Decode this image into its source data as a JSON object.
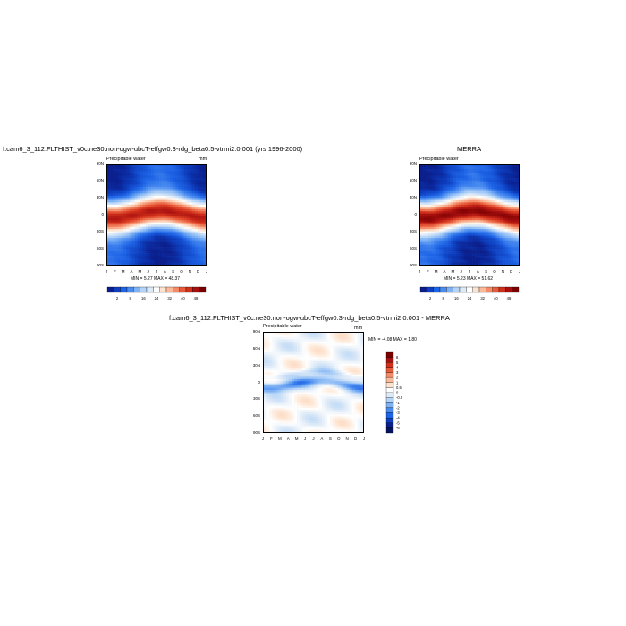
{
  "chart_data": [
    {
      "type": "heatmap",
      "title": "f.cam6_3_112.FLTHIST_v0c.ne30.non-ogw-ubcT-effgw0.3-rdg_beta0.5-vtrmi2.0.001 (yrs 1996-2000)",
      "subtitle": "Precipitable water",
      "units": "mm",
      "x_ticks": [
        "J",
        "F",
        "M",
        "A",
        "M",
        "J",
        "J",
        "A",
        "S",
        "O",
        "N",
        "D",
        "J"
      ],
      "y_ticks": [
        "90N",
        "60N",
        "30N",
        "0",
        "30S",
        "60S",
        "90S"
      ],
      "min_label": "MIN =",
      "min": "5.27",
      "max_label": "MAX =",
      "max": "48.37",
      "colorbar_levels": [
        "2",
        "8",
        "16",
        "24",
        "32",
        "40",
        "48",
        "50"
      ],
      "colorbar_colors": [
        "#0a1e8c",
        "#0d3fc0",
        "#1e64e6",
        "#4a8cf0",
        "#7fb2f5",
        "#b3d3f7",
        "#dce9f7",
        "#ffffff",
        "#fde3cf",
        "#f9b99a",
        "#f48a66",
        "#e85a3a",
        "#d1301a",
        "#a81010",
        "#7a0000"
      ]
    },
    {
      "type": "heatmap",
      "title": "MERRA",
      "subtitle": "Precipitable water",
      "units": "mm",
      "x_ticks": [
        "J",
        "F",
        "M",
        "A",
        "M",
        "J",
        "J",
        "A",
        "S",
        "O",
        "N",
        "D",
        "J"
      ],
      "y_ticks": [
        "90N",
        "60N",
        "30N",
        "0",
        "30S",
        "60S",
        "90S"
      ],
      "min_label": "MIN =",
      "min": "5.23",
      "max_label": "MAX =",
      "max": "51.62",
      "colorbar_levels": [
        "2",
        "8",
        "16",
        "24",
        "32",
        "40",
        "48",
        "50"
      ],
      "colorbar_colors": [
        "#0a1e8c",
        "#0d3fc0",
        "#1e64e6",
        "#4a8cf0",
        "#7fb2f5",
        "#b3d3f7",
        "#dce9f7",
        "#ffffff",
        "#fde3cf",
        "#f9b99a",
        "#f48a66",
        "#e85a3a",
        "#d1301a",
        "#a81010",
        "#7a0000"
      ]
    },
    {
      "type": "heatmap",
      "title": "f.cam6_3_112.FLTHIST_v0c.ne30.non-ogw-ubcT-effgw0.3-rdg_beta0.5-vtrmi2.0.001 - MERRA",
      "subtitle": "Precipitable water",
      "units": "mm",
      "x_ticks": [
        "J",
        "F",
        "M",
        "A",
        "M",
        "J",
        "J",
        "A",
        "S",
        "O",
        "N",
        "D",
        "J"
      ],
      "y_ticks": [
        "90N",
        "60N",
        "30N",
        "0",
        "30S",
        "60S",
        "90S"
      ],
      "min_label": "MIN =",
      "min": "-4.08",
      "max_label": "MAX =",
      "max": "1.80",
      "colorbar_levels": [
        "6",
        "5",
        "4",
        "3",
        "2",
        "1",
        "0.5",
        "0",
        "-0.5",
        "-1",
        "-2",
        "-3",
        "-4",
        "-5",
        "-6"
      ],
      "colorbar_colors": [
        "#7a0000",
        "#a81010",
        "#d1301a",
        "#e85a3a",
        "#f48a66",
        "#f9b99a",
        "#fde3cf",
        "#ffffff",
        "#dce9f7",
        "#b3d3f7",
        "#7fb2f5",
        "#4a8cf0",
        "#1e64e6",
        "#0d3fc0",
        "#0a1e8c",
        "#061460"
      ]
    }
  ]
}
